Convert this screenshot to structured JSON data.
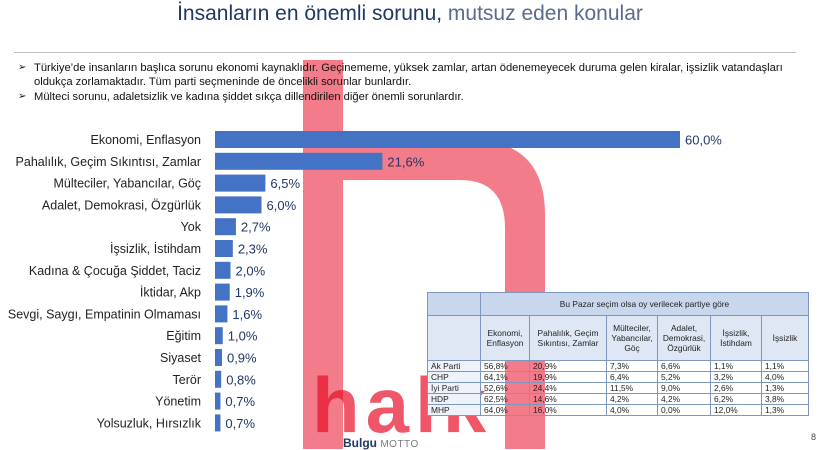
{
  "title": {
    "main": "İnsanların en önemli sorunu,",
    "sub": " mutsuz eden konular"
  },
  "bullets": [
    "Türkiye’de insanların başlıca sorunu ekonomi kaynaklıdır. Geçinememe, yüksek zamlar, artan ödenemeyecek duruma gelen kiralar, işsizlik vatandaşları oldukça zorlamaktadır. Tüm parti seçmeninde de öncelikli sorunlar bunlardır.",
    "Mülteci sorunu, adaletsizlik ve kadına şiddet sıkça dillendirilen diğer önemli sorunlardır."
  ],
  "chart_data": {
    "type": "bar",
    "orientation": "horizontal",
    "categories": [
      "Ekonomi, Enflasyon",
      "Pahalılık, Geçim Sıkıntısı, Zamlar",
      "Mülteciler, Yabancılar, Göç",
      "Adalet, Demokrasi, Özgürlük",
      "Yok",
      "İşsizlik, İstihdam",
      "Kadına & Çocuğa Şiddet, Taciz",
      "İktidar, Akp",
      "Sevgi, Saygı, Empatinin Olmaması",
      "Eğitim",
      "Siyaset",
      "Terör",
      "Yönetim",
      "Yolsuzluk, Hırsızlık"
    ],
    "values": [
      60.0,
      21.6,
      6.5,
      6.0,
      2.7,
      2.3,
      2.0,
      1.9,
      1.6,
      1.0,
      0.9,
      0.8,
      0.7,
      0.7
    ],
    "labels": [
      "60,0%",
      "21,6%",
      "6,5%",
      "6,0%",
      "2,7%",
      "2,3%",
      "2,0%",
      "1,9%",
      "1,6%",
      "1,0%",
      "0,9%",
      "0,8%",
      "0,7%",
      "0,7%"
    ],
    "bar_color": "#4472c4",
    "xlim": [
      0,
      60
    ]
  },
  "table": {
    "header": "Bu Pazar seçim olsa  oy verilecek partiye göre",
    "columns": [
      "Ekonomi, Enflasyon",
      "Pahalılık, Geçim Sıkıntısı, Zamlar",
      "Mülteciler, Yabancılar, Göç",
      "Adalet, Demokrasi, Özgürlük",
      "İşsizlik, İstihdam",
      "İşsizlik"
    ],
    "rows": [
      {
        "party": "Ak Parti",
        "values": [
          "56,8%",
          "20,9%",
          "7,3%",
          "6,6%",
          "1,1%",
          "1,1%"
        ]
      },
      {
        "party": "CHP",
        "values": [
          "64,1%",
          "19,9%",
          "6,4%",
          "5,2%",
          "3,2%",
          "4,0%"
        ]
      },
      {
        "party": "İyi Parti",
        "values": [
          "52,6%",
          "24,4%",
          "11,5%",
          "9,0%",
          "2,6%",
          "1,3%"
        ]
      },
      {
        "party": "HDP",
        "values": [
          "62,5%",
          "14,6%",
          "4,2%",
          "4,2%",
          "6,2%",
          "3,8%"
        ]
      },
      {
        "party": "MHP",
        "values": [
          "64,0%",
          "16,0%",
          "4,0%",
          "0,0%",
          "12,0%",
          "1,3%"
        ]
      }
    ]
  },
  "footer": {
    "brand": "Bulgu",
    "motto": "MOTTO",
    "page": "8"
  },
  "watermark": {
    "text": "halk",
    "color": "#e8102a"
  }
}
